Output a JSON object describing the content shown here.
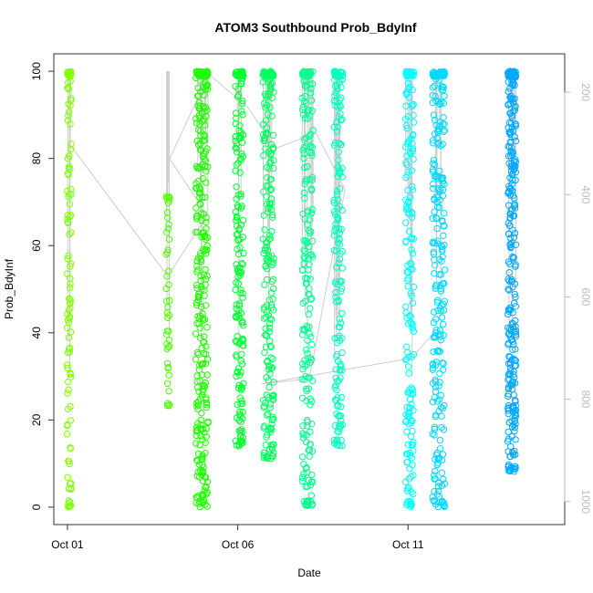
{
  "chart_data": {
    "type": "scatter",
    "title": "ATOM3 Southbound Prob_BdyInf",
    "xlabel": "Date",
    "ylabel": "Prob_BdyInf",
    "x_ticks": [
      "Oct 01",
      "Oct 06",
      "Oct 11"
    ],
    "x_tick_days": [
      1,
      6,
      11
    ],
    "x_range": [
      0.6,
      15.6
    ],
    "y_ticks": [
      0,
      20,
      40,
      60,
      80,
      100
    ],
    "ylim": [
      -4,
      104
    ],
    "y2_ticks": [
      200,
      400,
      600,
      800,
      1000
    ],
    "y2_range": [
      1045,
      125
    ],
    "y2_color": "#bbbbbb",
    "grid": false,
    "marker": "open-circle",
    "line_color": "#cccccc",
    "depth_line": [
      [
        1.05,
        300
      ],
      [
        3.95,
        560
      ],
      [
        5.1,
        440
      ],
      [
        4.0,
        330
      ],
      [
        5.15,
        165
      ],
      [
        6.3,
        230
      ],
      [
        7.1,
        310
      ],
      [
        8.3,
        280
      ],
      [
        9.15,
        390
      ],
      [
        8.1,
        760
      ],
      [
        6.7,
        770
      ],
      [
        11.1,
        720
      ],
      [
        11.9,
        660
      ]
    ],
    "series": [
      {
        "x_center": 1.05,
        "x_spread": 0.06,
        "y_min": 0,
        "y_max": 100,
        "count": 110,
        "color": "#80ff00"
      },
      {
        "x_center": 3.95,
        "x_spread": 0.05,
        "y_min": 23,
        "y_max": 72,
        "count": 45,
        "color": "#50ff00"
      },
      {
        "x_center": 4.95,
        "x_spread": 0.18,
        "y_min": 0,
        "y_max": 100,
        "count": 300,
        "color": "#20ff00"
      },
      {
        "x_center": 6.05,
        "x_spread": 0.12,
        "y_min": 14,
        "y_max": 100,
        "count": 190,
        "color": "#00ff30"
      },
      {
        "x_center": 6.9,
        "x_spread": 0.16,
        "y_min": 11,
        "y_max": 100,
        "count": 220,
        "color": "#00ff60"
      },
      {
        "x_center": 8.05,
        "x_spread": 0.16,
        "y_min": 0,
        "y_max": 100,
        "count": 210,
        "color": "#00ff90"
      },
      {
        "x_center": 8.95,
        "x_spread": 0.13,
        "y_min": 14,
        "y_max": 100,
        "count": 170,
        "color": "#00ffc0"
      },
      {
        "x_center": 11.05,
        "x_spread": 0.12,
        "y_min": 0,
        "y_max": 100,
        "count": 190,
        "color": "#00ffff"
      },
      {
        "x_center": 11.9,
        "x_spread": 0.18,
        "y_min": 0,
        "y_max": 100,
        "count": 260,
        "color": "#00d8ff"
      },
      {
        "x_center": 14.05,
        "x_spread": 0.12,
        "y_min": 8,
        "y_max": 100,
        "count": 300,
        "color": "#00a8ff"
      }
    ]
  }
}
